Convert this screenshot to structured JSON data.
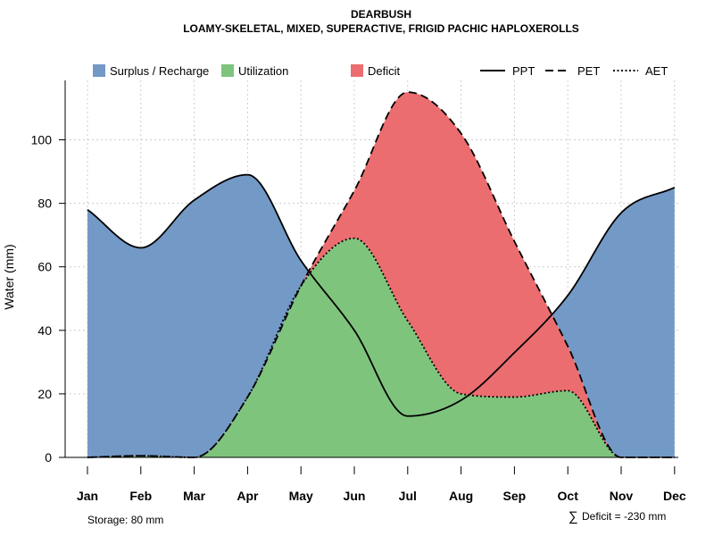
{
  "chart_data": {
    "type": "area",
    "title": "DEARBUSH",
    "subtitle": "LOAMY-SKELETAL, MIXED, SUPERACTIVE, FRIGID PACHIC HAPLOXEROLLS",
    "ylabel": "Water (mm)",
    "xlabel": "",
    "ylim": [
      0,
      118
    ],
    "yticks": [
      "0",
      "20",
      "40",
      "60",
      "80",
      "100"
    ],
    "categories": [
      "Jan",
      "Feb",
      "Mar",
      "Apr",
      "May",
      "Jun",
      "Jul",
      "Aug",
      "Sep",
      "Oct",
      "Nov",
      "Dec"
    ],
    "grid": true,
    "legend_position": "top",
    "series": [
      {
        "name": "PPT",
        "style": "solid",
        "values": [
          78,
          66,
          81,
          89,
          62,
          40,
          13,
          18,
          33,
          51,
          77,
          85
        ]
      },
      {
        "name": "PET",
        "style": "dashed",
        "values": [
          0,
          0.5,
          0,
          19,
          54,
          84,
          115,
          102,
          68,
          35,
          0,
          0
        ]
      },
      {
        "name": "AET",
        "style": "dotted",
        "values": [
          0,
          0.5,
          0,
          19,
          54,
          69,
          43,
          20,
          19,
          21,
          0,
          0
        ]
      }
    ],
    "areas": [
      {
        "name": "Surplus / Recharge",
        "color": "#7399c6"
      },
      {
        "name": "Utilization",
        "color": "#7fc47d"
      },
      {
        "name": "Deficit",
        "color": "#eb6d6f"
      }
    ],
    "annotations": {
      "storage": "Storage: 80 mm",
      "deficit": "Deficit = -230 mm",
      "deficit_symbol": "∑"
    }
  }
}
